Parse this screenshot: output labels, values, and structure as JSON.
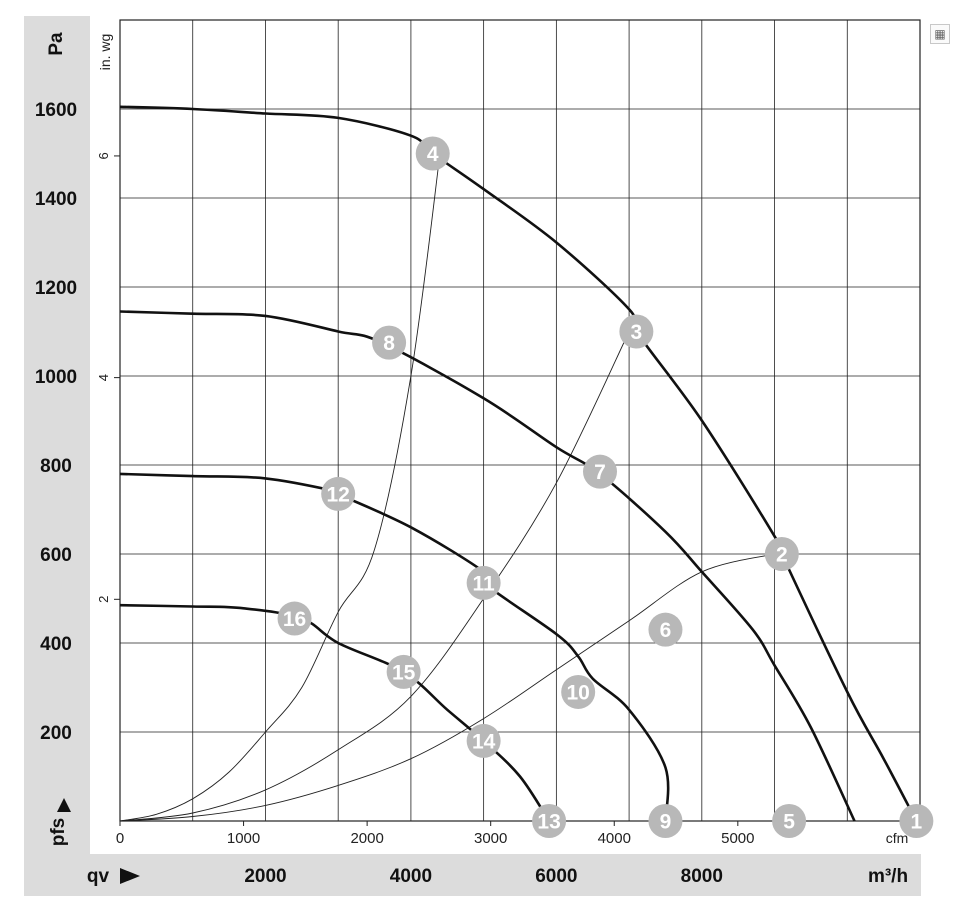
{
  "chart_data": {
    "type": "line",
    "x_unit_primary": "m³/h",
    "x_unit_secondary": "cfm",
    "y_unit_primary": "Pa",
    "y_unit_secondary": "in. wg",
    "y_axis_label": "pfs",
    "x_axis_label": "qv",
    "x_ticks_m3h": [
      "2000",
      "4000",
      "6000",
      "8000"
    ],
    "x_ticks_cfm": [
      "0",
      "1000",
      "2000",
      "3000",
      "4000",
      "5000"
    ],
    "y_ticks_pa": [
      "200",
      "400",
      "600",
      "800",
      "1000",
      "1200",
      "1400",
      "1600"
    ],
    "y_ticks_inwg": [
      "2",
      "4",
      "6"
    ],
    "xlim_m3h": [
      0,
      11000
    ],
    "ylim_pa": [
      0,
      1800
    ],
    "fan_curves": [
      {
        "points": [
          [
            0,
            1605
          ],
          [
            1000,
            1600
          ],
          [
            2000,
            1590
          ],
          [
            3000,
            1580
          ],
          [
            4000,
            1540
          ],
          [
            4300,
            1500
          ],
          [
            5000,
            1420
          ],
          [
            6000,
            1300
          ],
          [
            7000,
            1150
          ],
          [
            7100,
            1100
          ],
          [
            8000,
            900
          ],
          [
            9000,
            640
          ],
          [
            9100,
            600
          ],
          [
            10000,
            290
          ],
          [
            10500,
            140
          ],
          [
            10950,
            0
          ]
        ]
      },
      {
        "points": [
          [
            0,
            1145
          ],
          [
            1000,
            1140
          ],
          [
            2000,
            1135
          ],
          [
            3000,
            1100
          ],
          [
            3600,
            1075
          ],
          [
            5000,
            950
          ],
          [
            6000,
            840
          ],
          [
            6600,
            780
          ],
          [
            7500,
            650
          ],
          [
            8000,
            560
          ],
          [
            8700,
            430
          ],
          [
            9000,
            350
          ],
          [
            9500,
            210
          ],
          [
            10100,
            0
          ]
        ]
      },
      {
        "points": [
          [
            0,
            780
          ],
          [
            1000,
            775
          ],
          [
            2000,
            770
          ],
          [
            3000,
            740
          ],
          [
            3000,
            735
          ],
          [
            4000,
            660
          ],
          [
            5000,
            560
          ],
          [
            5000,
            535
          ],
          [
            6000,
            420
          ],
          [
            6300,
            370
          ],
          [
            6500,
            320
          ],
          [
            7000,
            250
          ],
          [
            7500,
            120
          ],
          [
            7500,
            0
          ]
        ]
      },
      {
        "points": [
          [
            0,
            485
          ],
          [
            1000,
            482
          ],
          [
            1700,
            478
          ],
          [
            2500,
            455
          ],
          [
            3000,
            400
          ],
          [
            3900,
            335
          ],
          [
            4500,
            250
          ],
          [
            5000,
            180
          ],
          [
            5500,
            100
          ],
          [
            5900,
            0
          ]
        ]
      }
    ],
    "system_curves": [
      {
        "points": [
          [
            0,
            0
          ],
          [
            500,
            15
          ],
          [
            1000,
            50
          ],
          [
            1500,
            110
          ],
          [
            2000,
            200
          ],
          [
            2500,
            300
          ],
          [
            3000,
            470
          ],
          [
            3500,
            610
          ],
          [
            4000,
            1000
          ],
          [
            4400,
            1500
          ]
        ]
      },
      {
        "points": [
          [
            0,
            0
          ],
          [
            1000,
            18
          ],
          [
            2000,
            70
          ],
          [
            3000,
            160
          ],
          [
            4000,
            280
          ],
          [
            5000,
            500
          ],
          [
            6000,
            760
          ],
          [
            7000,
            1100
          ]
        ]
      },
      {
        "points": [
          [
            0,
            0
          ],
          [
            1000,
            10
          ],
          [
            2000,
            35
          ],
          [
            3000,
            80
          ],
          [
            4000,
            140
          ],
          [
            5000,
            230
          ],
          [
            6000,
            340
          ],
          [
            7000,
            450
          ],
          [
            8000,
            560
          ],
          [
            9000,
            600
          ]
        ]
      }
    ],
    "operating_points": [
      {
        "label": "1",
        "x": 10950,
        "y": 0
      },
      {
        "label": "2",
        "x": 9100,
        "y": 600
      },
      {
        "label": "3",
        "x": 7100,
        "y": 1100
      },
      {
        "label": "4",
        "x": 4300,
        "y": 1500
      },
      {
        "label": "5",
        "x": 9200,
        "y": 0
      },
      {
        "label": "6",
        "x": 7500,
        "y": 430
      },
      {
        "label": "7",
        "x": 6600,
        "y": 785
      },
      {
        "label": "8",
        "x": 3700,
        "y": 1075
      },
      {
        "label": "9",
        "x": 7500,
        "y": 0
      },
      {
        "label": "10",
        "x": 6300,
        "y": 290
      },
      {
        "label": "11",
        "x": 5000,
        "y": 535
      },
      {
        "label": "12",
        "x": 3000,
        "y": 735
      },
      {
        "label": "13",
        "x": 5900,
        "y": 0
      },
      {
        "label": "14",
        "x": 5000,
        "y": 180
      },
      {
        "label": "15",
        "x": 3900,
        "y": 335
      },
      {
        "label": "16",
        "x": 2400,
        "y": 455
      }
    ],
    "colors": {
      "curve": "#111111",
      "system_curve": "#222222",
      "marker": "#b8b8b8",
      "grid": "#222222",
      "band": "#dcdcdc"
    }
  },
  "corner_icon": "report-icon"
}
